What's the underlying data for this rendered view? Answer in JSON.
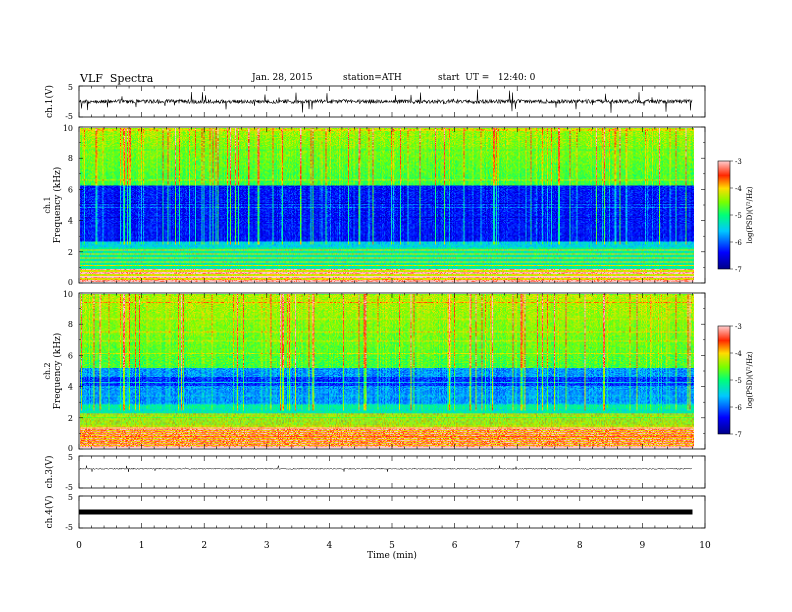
{
  "header": {
    "title": "VLF  Spectra",
    "date": "Jan. 28, 2015",
    "station": "station=ATH",
    "start": "start  UT =   12:40: 0"
  },
  "chart_data": [
    {
      "type": "line",
      "panel": "ch1-waveform",
      "ylabel": "ch.1(V)",
      "ylim": [
        -5,
        5
      ],
      "y_ticks": [
        "5",
        "-5"
      ],
      "xlim": [
        0,
        10
      ],
      "baseline_value": 0,
      "data_end_x": 9.8
    },
    {
      "type": "heatmap",
      "panel": "ch1-spectrogram",
      "ylabel_channel": "ch.1",
      "ylabel": "Frequency  (kHz)",
      "ylim": [
        0,
        10
      ],
      "y_ticks": [
        "0",
        "2",
        "4",
        "6",
        "8",
        "10"
      ],
      "xlim": [
        0,
        10
      ],
      "data_end_x": 9.8,
      "colorbar": {
        "label": "log(PSD)(V²/Hz)",
        "range": [
          -7,
          -3
        ],
        "ticks": [
          "-3",
          "-4",
          "-5",
          "-6",
          "-7"
        ]
      }
    },
    {
      "type": "heatmap",
      "panel": "ch2-spectrogram",
      "ylabel_channel": "ch.2",
      "ylabel": "Frequency  (kHz)",
      "ylim": [
        0,
        10
      ],
      "y_ticks": [
        "0",
        "2",
        "4",
        "6",
        "8",
        "10"
      ],
      "xlim": [
        0,
        10
      ],
      "data_end_x": 9.8,
      "colorbar": {
        "label": "log(PSD)(V²/Hz)",
        "range": [
          -7,
          -3
        ],
        "ticks": [
          "-3",
          "-4",
          "-5",
          "-6",
          "-7"
        ]
      }
    },
    {
      "type": "line",
      "panel": "ch3-waveform",
      "ylabel": "ch.3(V)",
      "ylim": [
        -5,
        5
      ],
      "y_ticks": [
        "5",
        "-5"
      ],
      "xlim": [
        0,
        10
      ],
      "baseline_value": 1,
      "data_end_x": 9.8
    },
    {
      "type": "line",
      "panel": "ch4-waveform",
      "ylabel": "ch.4(V)",
      "ylim": [
        -5,
        5
      ],
      "y_ticks": [
        "5",
        "-5"
      ],
      "xlim": [
        0,
        10
      ],
      "baseline_value": 0,
      "data_end_x": 9.8,
      "xlabel": "Time  (min)",
      "x_ticks": [
        "0",
        "1",
        "2",
        "3",
        "4",
        "5",
        "6",
        "7",
        "8",
        "9",
        "10"
      ]
    }
  ]
}
